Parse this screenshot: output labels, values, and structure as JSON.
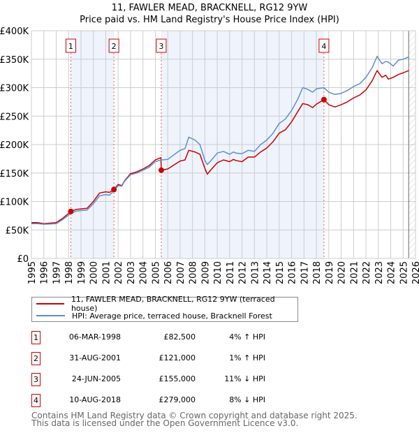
{
  "header": {
    "title": "11, FAWLER MEAD, BRACKNELL, RG12 9YW",
    "subtitle": "Price paid vs. HM Land Registry's House Price Index (HPI)"
  },
  "chart_data": {
    "type": "line",
    "title": "11, FAWLER MEAD, BRACKNELL, RG12 9YW — Price paid vs. HM Land Registry's House Price Index (HPI)",
    "xlim": [
      1995,
      2026
    ],
    "ylim": [
      0,
      400000
    ],
    "grid": true,
    "y_ticks": [
      {
        "value": 0,
        "label": "£0"
      },
      {
        "value": 50000,
        "label": "£50K"
      },
      {
        "value": 100000,
        "label": "£100K"
      },
      {
        "value": 150000,
        "label": "£150K"
      },
      {
        "value": 200000,
        "label": "£200K"
      },
      {
        "value": 250000,
        "label": "£250K"
      },
      {
        "value": 300000,
        "label": "£300K"
      },
      {
        "value": 350000,
        "label": "£350K"
      },
      {
        "value": 400000,
        "label": "£400K"
      }
    ],
    "x_ticks": [
      "1995",
      "1996",
      "1997",
      "1998",
      "1999",
      "2000",
      "2001",
      "2002",
      "2003",
      "2004",
      "2005",
      "2006",
      "2007",
      "2008",
      "2009",
      "2010",
      "2011",
      "2012",
      "2013",
      "2014",
      "2015",
      "2016",
      "2017",
      "2018",
      "2019",
      "2020",
      "2021",
      "2022",
      "2023",
      "2024",
      "2025",
      "2026"
    ],
    "forecast_from": 2025.45,
    "shaded_ranges": [
      [
        1998.18,
        2001.66
      ],
      [
        2005.48,
        2018.61
      ]
    ],
    "colors": {
      "property": "#cc0000",
      "hpi": "#5b8fd0",
      "shade": "#eef3fc"
    },
    "series": [
      {
        "name": "11, FAWLER MEAD, BRACKNELL, RG12 9YW (terraced house)",
        "key": "property",
        "x": [
          1995,
          1995.5,
          1996,
          1996.5,
          1997,
          1997.5,
          1998.18,
          1998.6,
          1999,
          1999.5,
          2000,
          2000.5,
          2001,
          2001.3,
          2001.66,
          2002,
          2002.3,
          2002.5,
          2003,
          2003.5,
          2004,
          2004.5,
          2005,
          2005.45,
          2005.48,
          2006,
          2006.5,
          2007,
          2007.4,
          2007.7,
          2008.2,
          2008.6,
          2009.0,
          2009.2,
          2009.5,
          2010,
          2010.5,
          2011,
          2011.3,
          2011.5,
          2012,
          2012.5,
          2013,
          2013.5,
          2014,
          2014.5,
          2015,
          2015.5,
          2016,
          2016.5,
          2016.9,
          2017.3,
          2017.7,
          2018,
          2018.61,
          2019,
          2019.5,
          2020,
          2020.5,
          2021,
          2021.5,
          2022,
          2022.5,
          2022.9,
          2023.3,
          2023.6,
          2023.8,
          2024.2,
          2024.6,
          2025,
          2025.45
        ],
        "y": [
          63000,
          63000,
          61000,
          62000,
          63000,
          70000,
          82500,
          86000,
          87000,
          88000,
          100000,
          115000,
          117000,
          116000,
          121000,
          130000,
          128000,
          136000,
          149000,
          152000,
          157000,
          163000,
          173000,
          177000,
          155000,
          157000,
          164000,
          171000,
          173000,
          190000,
          187000,
          183000,
          158000,
          148000,
          156000,
          168000,
          173000,
          170000,
          174000,
          172000,
          170000,
          178000,
          178000,
          187000,
          194000,
          205000,
          220000,
          226000,
          240000,
          258000,
          272000,
          270000,
          265000,
          271000,
          279000,
          270000,
          266000,
          270000,
          275000,
          282000,
          287000,
          296000,
          312000,
          330000,
          318000,
          322000,
          315000,
          318000,
          323000,
          326000,
          330000
        ]
      },
      {
        "name": "HPI: Average price, terraced house, Bracknell Forest",
        "key": "hpi",
        "x": [
          1995,
          1995.5,
          1996,
          1996.5,
          1997,
          1997.5,
          1998.18,
          1998.6,
          1999,
          1999.5,
          2000,
          2000.5,
          2001,
          2001.3,
          2001.66,
          2002,
          2002.3,
          2002.5,
          2003,
          2003.5,
          2004,
          2004.5,
          2005,
          2005.48,
          2006,
          2006.5,
          2007,
          2007.4,
          2007.7,
          2008.2,
          2008.6,
          2009.0,
          2009.2,
          2009.5,
          2010,
          2010.5,
          2011,
          2011.3,
          2011.5,
          2012,
          2012.5,
          2013,
          2013.5,
          2014,
          2014.5,
          2015,
          2015.5,
          2016,
          2016.5,
          2016.9,
          2017.3,
          2017.7,
          2018,
          2018.61,
          2019,
          2019.5,
          2020,
          2020.5,
          2021,
          2021.5,
          2022,
          2022.5,
          2022.9,
          2023.3,
          2023.6,
          2023.8,
          2024.2,
          2024.6,
          2025,
          2025.45
        ],
        "y": [
          61000,
          61000,
          60000,
          60500,
          61000,
          68000,
          79000,
          83000,
          84000,
          85000,
          96000,
          110000,
          112000,
          111000,
          119000,
          128000,
          127000,
          135000,
          147000,
          150000,
          155000,
          160000,
          170000,
          173000,
          174000,
          182000,
          190000,
          193000,
          213000,
          208000,
          200000,
          172000,
          165000,
          172000,
          185000,
          188000,
          183000,
          187000,
          185000,
          184000,
          190000,
          188000,
          200000,
          208000,
          220000,
          237000,
          245000,
          260000,
          280000,
          300000,
          297000,
          292000,
          298000,
          300000,
          292000,
          288000,
          290000,
          295000,
          302000,
          307000,
          318000,
          335000,
          355000,
          342000,
          346000,
          345000,
          338000,
          348000,
          350000,
          354000
        ]
      }
    ],
    "sales": [
      {
        "id": "1",
        "x": 1998.18,
        "price": 82500
      },
      {
        "id": "2",
        "x": 2001.66,
        "price": 121000
      },
      {
        "id": "3",
        "x": 2005.48,
        "price": 155000
      },
      {
        "id": "4",
        "x": 2018.61,
        "price": 279000
      }
    ]
  },
  "legend": {
    "property": "11, FAWLER MEAD, BRACKNELL, RG12 9YW (terraced house)",
    "hpi": "HPI: Average price, terraced house, Bracknell Forest"
  },
  "transactions": [
    {
      "id": "1",
      "date": "06-MAR-1998",
      "price": "£82,500",
      "hpi": "4% ↑ HPI"
    },
    {
      "id": "2",
      "date": "31-AUG-2001",
      "price": "£121,000",
      "hpi": "1% ↑ HPI"
    },
    {
      "id": "3",
      "date": "24-JUN-2005",
      "price": "£155,000",
      "hpi": "11% ↓ HPI"
    },
    {
      "id": "4",
      "date": "10-AUG-2018",
      "price": "£279,000",
      "hpi": "8% ↓ HPI"
    }
  ],
  "footer": {
    "line1": "Contains HM Land Registry data © Crown copyright and database right 2025.",
    "line2": "This data is licensed under the Open Government Licence v3.0."
  }
}
